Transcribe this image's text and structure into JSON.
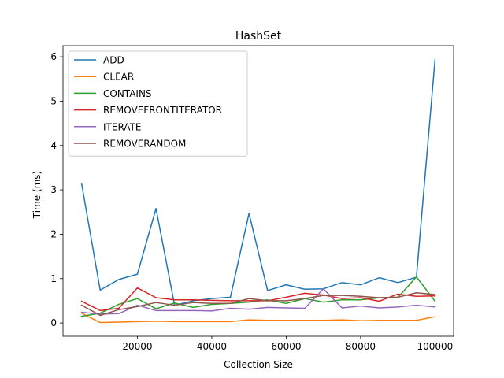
{
  "chart_data": {
    "type": "line",
    "title": "HashSet",
    "xlabel": "Collection Size",
    "ylabel": "Time (ms)",
    "xlim": [
      0,
      105000
    ],
    "ylim": [
      -0.3,
      6.25
    ],
    "xticks": [
      20000,
      40000,
      60000,
      80000,
      100000
    ],
    "xtick_labels": [
      "20000",
      "40000",
      "60000",
      "80000",
      "100000"
    ],
    "yticks": [
      0,
      1,
      2,
      3,
      4,
      5,
      6
    ],
    "ytick_labels": [
      "0",
      "1",
      "2",
      "3",
      "4",
      "5",
      "6"
    ],
    "grid": false,
    "legend_position": "top-left",
    "x": [
      5000,
      10000,
      15000,
      20000,
      25000,
      30000,
      35000,
      40000,
      45000,
      50000,
      55000,
      60000,
      65000,
      70000,
      75000,
      80000,
      85000,
      90000,
      95000,
      100000
    ],
    "series": [
      {
        "name": "ADD",
        "color": "#1f77b4",
        "values": [
          3.14,
          0.74,
          0.98,
          1.1,
          2.58,
          0.4,
          0.5,
          0.55,
          0.58,
          2.47,
          0.73,
          0.86,
          0.76,
          0.77,
          0.91,
          0.86,
          1.02,
          0.91,
          1.03,
          5.93
        ]
      },
      {
        "name": "CLEAR",
        "color": "#ff7f0e",
        "values": [
          0.22,
          0.01,
          0.02,
          0.03,
          0.04,
          0.03,
          0.03,
          0.03,
          0.03,
          0.07,
          0.06,
          0.06,
          0.06,
          0.06,
          0.07,
          0.05,
          0.06,
          0.06,
          0.06,
          0.14
        ]
      },
      {
        "name": "CONTAINS",
        "color": "#2ca02c",
        "values": [
          0.15,
          0.22,
          0.42,
          0.55,
          0.32,
          0.45,
          0.35,
          0.42,
          0.44,
          0.47,
          0.52,
          0.44,
          0.55,
          0.47,
          0.52,
          0.52,
          0.57,
          0.57,
          1.04,
          0.49
        ]
      },
      {
        "name": "REMOVEFRONTITERATOR",
        "color": "#d62728",
        "values": [
          0.49,
          0.28,
          0.33,
          0.79,
          0.57,
          0.52,
          0.52,
          0.51,
          0.5,
          0.5,
          0.5,
          0.58,
          0.67,
          0.63,
          0.55,
          0.57,
          0.49,
          0.65,
          0.6,
          0.61
        ]
      },
      {
        "name": "ITERATE",
        "color": "#9467bd",
        "values": [
          0.24,
          0.2,
          0.21,
          0.4,
          0.28,
          0.28,
          0.28,
          0.27,
          0.33,
          0.31,
          0.35,
          0.34,
          0.33,
          0.77,
          0.34,
          0.38,
          0.34,
          0.36,
          0.4,
          0.36
        ]
      },
      {
        "name": "REMOVERANDOM",
        "color": "#8c564b",
        "values": [
          0.4,
          0.17,
          0.3,
          0.37,
          0.46,
          0.4,
          0.46,
          0.44,
          0.44,
          0.55,
          0.5,
          0.5,
          0.55,
          0.62,
          0.62,
          0.6,
          0.57,
          0.58,
          0.68,
          0.64
        ]
      }
    ]
  }
}
